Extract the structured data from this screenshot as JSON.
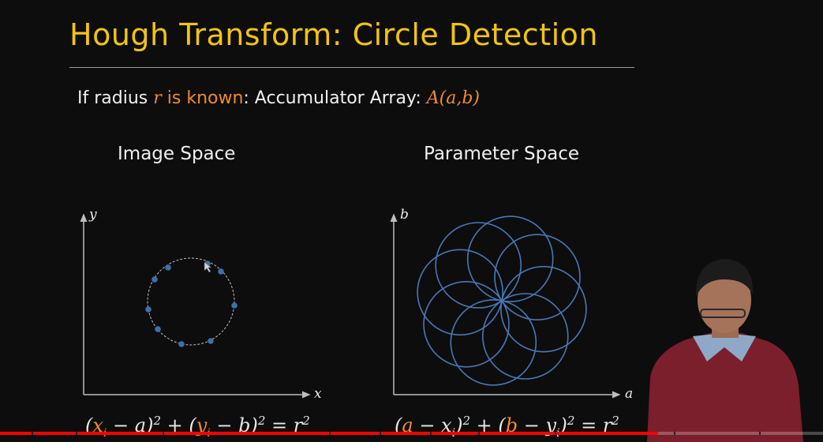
{
  "slide": {
    "title": "Hough Transform: Circle Detection",
    "subtitle": {
      "prefix": "If radius ",
      "var_r": "r",
      "known": " is known",
      "mid": ": Accumulator Array: ",
      "accumulator": "A(a,b)"
    },
    "image_space": {
      "label": "Image Space",
      "x_axis": "x",
      "y_axis": "y",
      "equation": {
        "p1": "(",
        "xi": "x",
        "xi_sub": "i",
        "p2": " − a)",
        "sq1": "2",
        "plus": " + (",
        "yi": "y",
        "yi_sub": "i",
        "p3": " − b)",
        "sq2": "2",
        "eqr": " = r",
        "sq3": "2"
      }
    },
    "parameter_space": {
      "label": "Parameter Space",
      "x_axis": "a",
      "y_axis": "b",
      "equation": {
        "p1": "(",
        "a": "a",
        "p2": " − x",
        "xi_sub": "i",
        "p3": ")",
        "sq1": "2",
        "plus": " + (",
        "b": "b",
        "p4": " − y",
        "yi_sub": "i",
        "p5": ")",
        "sq2": "2",
        "eqr": " = r",
        "sq3": "2"
      }
    }
  },
  "colors": {
    "title": "#f2c40f",
    "highlight": "#f28a2e",
    "circle_stroke": "#4a78b5",
    "point_fill": "#3d6fae",
    "progress": "#ff0000"
  },
  "video": {
    "progress_fraction": 0.8
  }
}
